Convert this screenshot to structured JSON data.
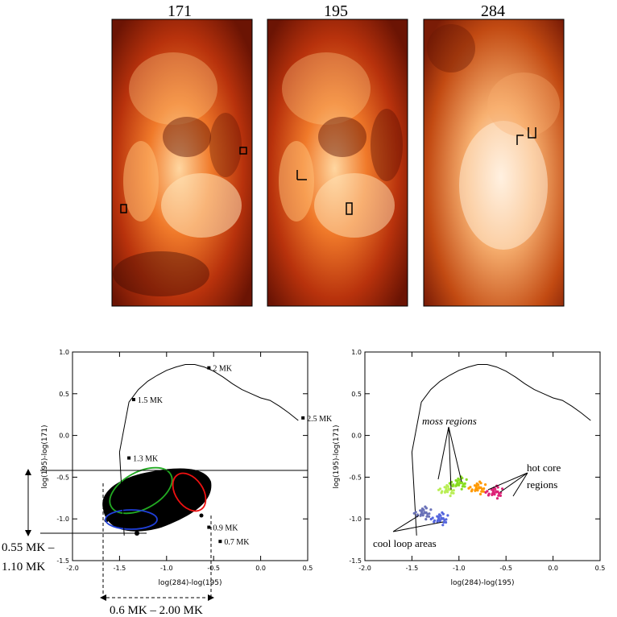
{
  "images": {
    "panels": [
      {
        "label": "171"
      },
      {
        "label": "195"
      },
      {
        "label": "284"
      }
    ]
  },
  "chart_data": [
    {
      "type": "line",
      "x": [
        -1.45,
        -1.5,
        -1.4,
        -1.3,
        -1.2,
        -1.1,
        -1.0,
        -0.9,
        -0.8,
        -0.7,
        -0.6,
        -0.5,
        -0.4,
        -0.3,
        -0.2,
        -0.1,
        0.0,
        0.1,
        0.2,
        0.3,
        0.4
      ],
      "series": [
        {
          "values": [
            -1.2,
            -0.2,
            0.4,
            0.55,
            0.65,
            0.72,
            0.78,
            0.82,
            0.85,
            0.85,
            0.82,
            0.77,
            0.7,
            0.62,
            0.55,
            0.5,
            0.45,
            0.42,
            0.35,
            0.27,
            0.18
          ]
        }
      ],
      "markers": [
        {
          "label": "1.5 MK",
          "x": -1.35,
          "y": 0.43
        },
        {
          "label": "1.3 MK",
          "x": -1.4,
          "y": -0.27
        },
        {
          "label": "2 MK",
          "x": -0.55,
          "y": 0.81
        },
        {
          "label": "2.5 MK",
          "x": 0.45,
          "y": 0.21
        },
        {
          "label": "0.9 MK",
          "x": -0.55,
          "y": -1.1
        },
        {
          "label": "0.7 MK",
          "x": -0.43,
          "y": -1.27
        }
      ],
      "xlabel": "log(284)-log(195)",
      "ylabel": "log(195)-log(171)",
      "xlim": [
        -2.0,
        0.5
      ],
      "ylim": [
        -1.5,
        1.0
      ],
      "xticks": [
        "-2.0",
        "-1.5",
        "-1.0",
        "-0.5",
        "0.0",
        "0.5"
      ],
      "yticks": [
        "-1.5",
        "-1.0",
        "-0.5",
        "0.0",
        "0.5",
        "1.0"
      ],
      "annotations": {
        "temp_range_y": "0.55 MK – 1.10 MK",
        "temp_range_x": "0.6 MK – 2.00 MK"
      },
      "ellipse_colors": {
        "green": "#22aa22",
        "red": "#ee1111",
        "blue": "#1f3fd8"
      }
    },
    {
      "type": "scatter",
      "xlabel": "log(284)-log(195)",
      "ylabel": "log(195)-log(171)",
      "xlim": [
        -2.0,
        0.5
      ],
      "ylim": [
        -1.5,
        1.0
      ],
      "xticks": [
        "-2.0",
        "-1.5",
        "-1.0",
        "-0.5",
        "0.0",
        "0.5"
      ],
      "yticks": [
        "-1.5",
        "-1.0",
        "-0.5",
        "0.0",
        "0.5",
        "1.0"
      ],
      "clusters": [
        {
          "x": -1.12,
          "y": -0.65,
          "color": "#b9ee55"
        },
        {
          "x": -1.0,
          "y": -0.57,
          "color": "#88dd22"
        },
        {
          "x": -0.8,
          "y": -0.63,
          "color": "#ff9900"
        },
        {
          "x": -0.62,
          "y": -0.68,
          "color": "#dd2277"
        },
        {
          "x": -1.38,
          "y": -0.93,
          "color": "#6a72b8"
        },
        {
          "x": -1.2,
          "y": -1.0,
          "color": "#5566dd"
        }
      ],
      "annotations": {
        "moss": "moss regions",
        "hot": [
          "hot core",
          "regions"
        ],
        "cool": "cool loop areas"
      }
    }
  ]
}
